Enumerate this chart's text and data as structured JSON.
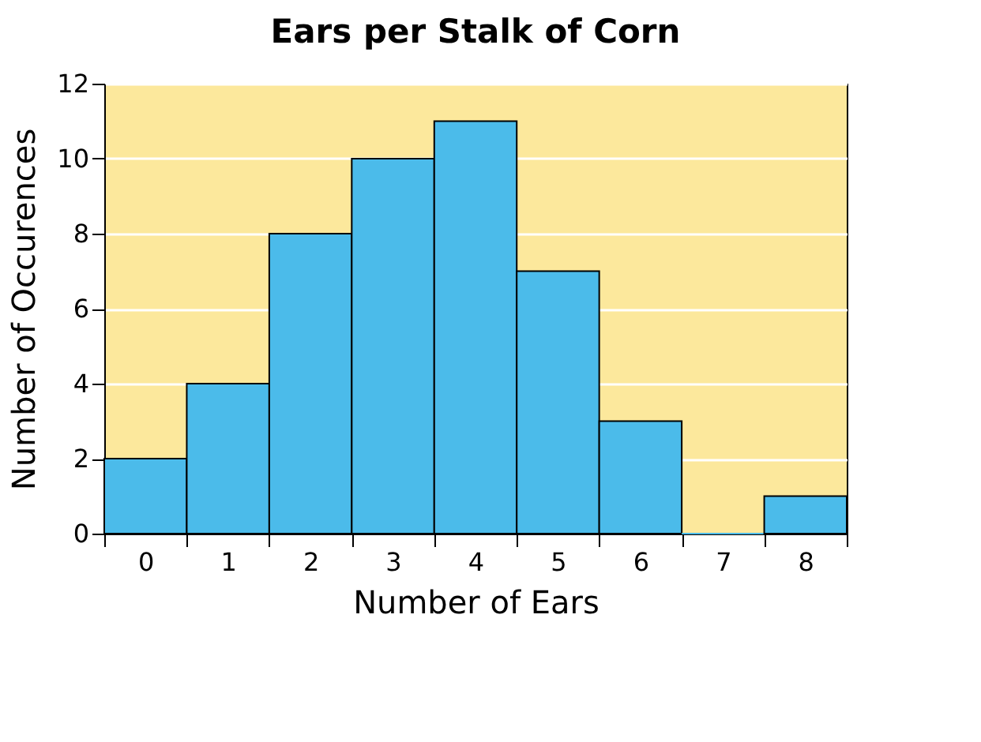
{
  "chart_data": {
    "type": "bar",
    "title": "Ears per Stalk of Corn",
    "xlabel": "Number of Ears",
    "ylabel": "Number of Occurences",
    "categories": [
      "0",
      "1",
      "2",
      "3",
      "4",
      "5",
      "6",
      "7",
      "8"
    ],
    "values": [
      2,
      4,
      8,
      10,
      11,
      7,
      3,
      0,
      1
    ],
    "color": "#4bbbea",
    "ylim": [
      0,
      12
    ],
    "yticks": [
      0,
      2,
      4,
      6,
      8,
      10,
      12
    ],
    "grid": "y"
  }
}
